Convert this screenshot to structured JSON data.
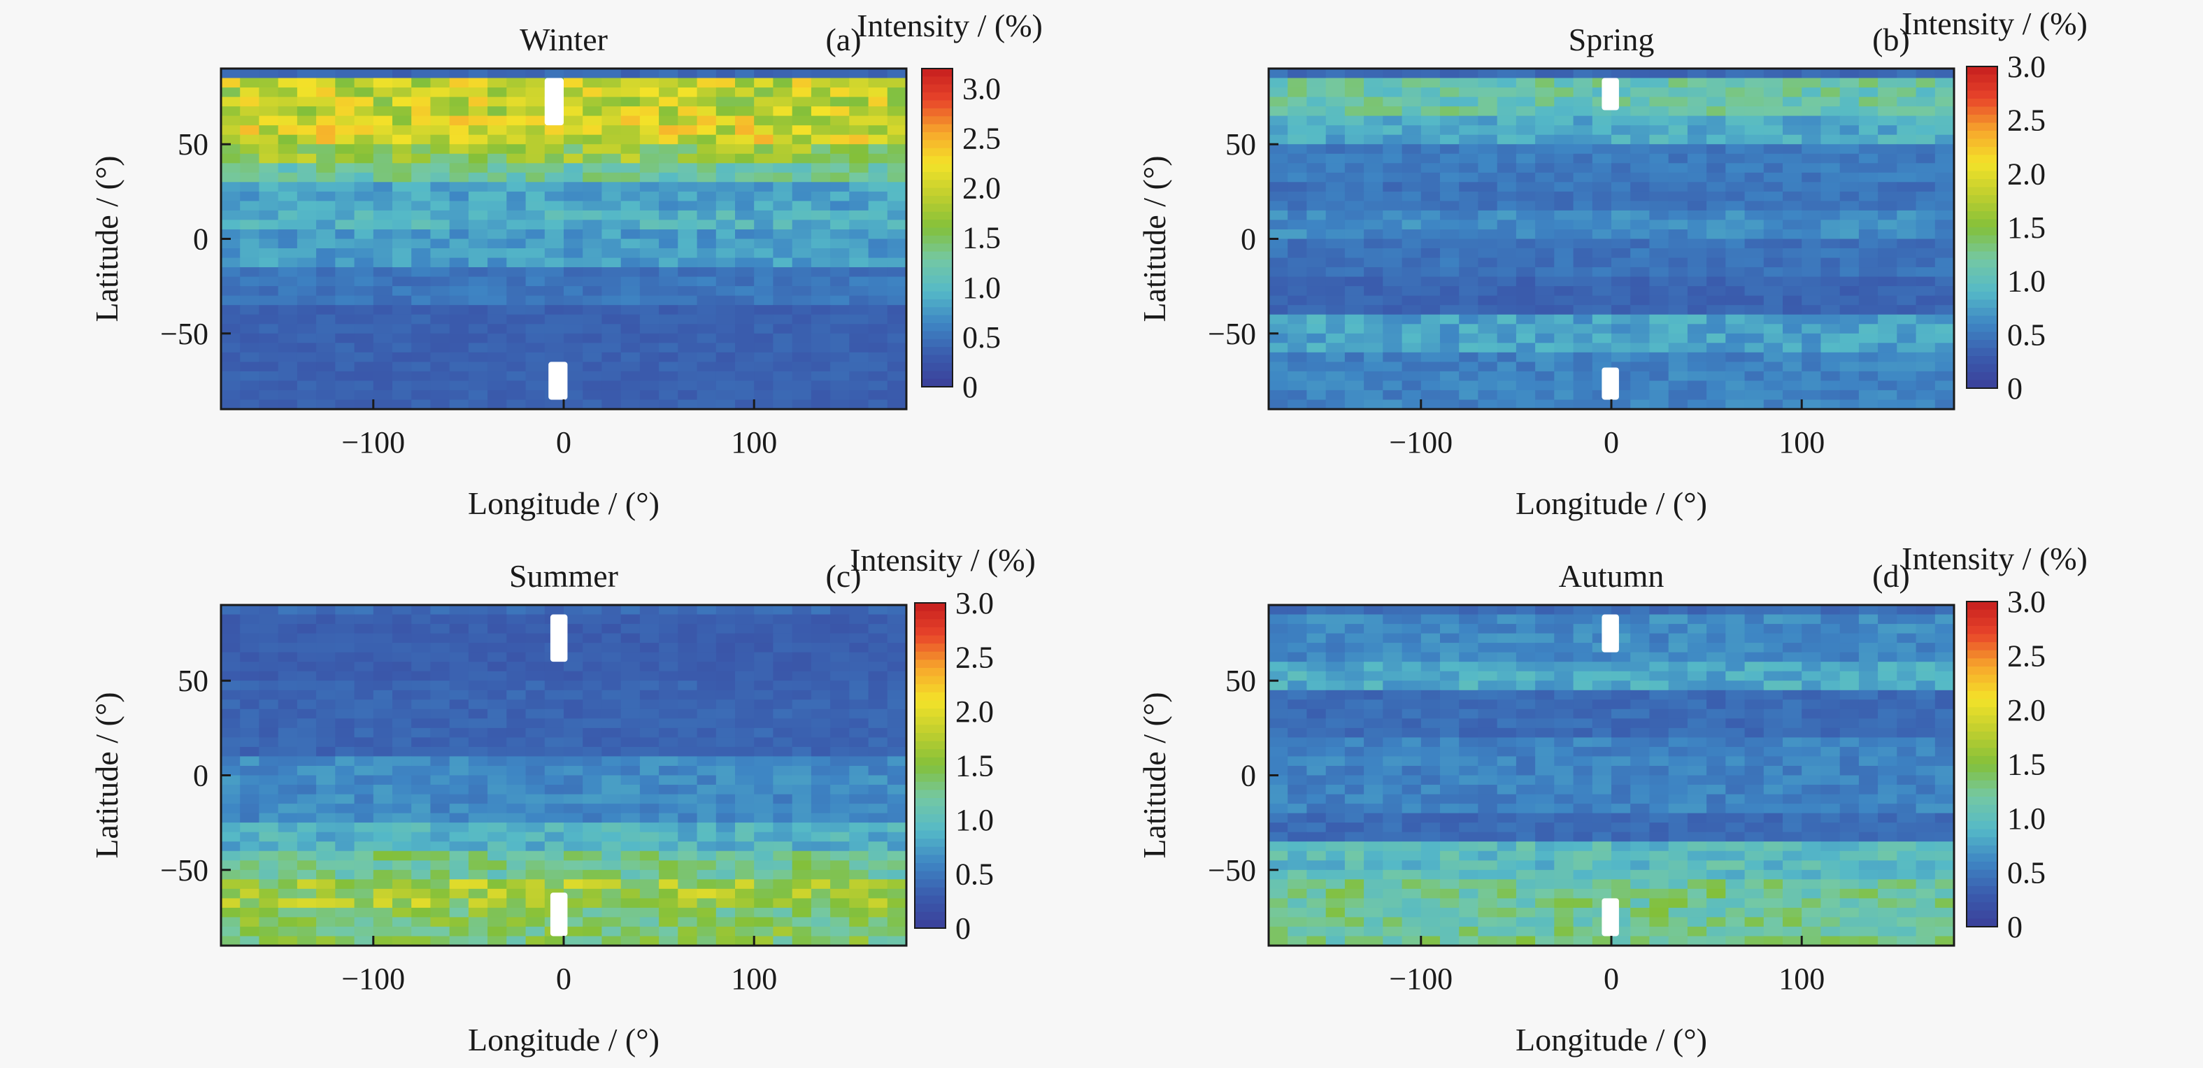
{
  "chart_data": [
    {
      "type": "heatmap",
      "panel_label": "(a)",
      "title": "Winter",
      "xlabel": "Longitude / (°)",
      "ylabel": "Latitude / (°)",
      "xlim": [
        -180,
        180
      ],
      "ylim": [
        -90,
        90
      ],
      "xticks": [
        -100,
        0,
        100
      ],
      "yticks": [
        50,
        0,
        -50
      ],
      "colorbar": {
        "title": "Intensity / (%)",
        "range": [
          0,
          3.2
        ],
        "ticks": [
          "3.0",
          "2.5",
          "2.0",
          "1.5",
          "1.0",
          "0.5",
          "0"
        ]
      },
      "grid_step_deg": [
        10,
        5
      ],
      "latitude_bands": [
        {
          "lat": [
            65,
            85
          ],
          "intensity": 1.9
        },
        {
          "lat": [
            50,
            65
          ],
          "intensity": 2.0
        },
        {
          "lat": [
            40,
            50
          ],
          "intensity": 1.6
        },
        {
          "lat": [
            30,
            40
          ],
          "intensity": 1.2
        },
        {
          "lat": [
            15,
            30
          ],
          "intensity": 0.8
        },
        {
          "lat": [
            5,
            15
          ],
          "intensity": 0.9
        },
        {
          "lat": [
            -15,
            5
          ],
          "intensity": 0.75
        },
        {
          "lat": [
            -35,
            -15
          ],
          "intensity": 0.5
        },
        {
          "lat": [
            -90,
            -35
          ],
          "intensity": 0.35
        }
      ],
      "gaps": [
        {
          "lon": [
            -10,
            0
          ],
          "lat": [
            60,
            85
          ]
        },
        {
          "lon": [
            -8,
            2
          ],
          "lat": [
            -85,
            -65
          ]
        }
      ]
    },
    {
      "type": "heatmap",
      "panel_label": "(b)",
      "title": "Spring",
      "xlabel": "Longitude / (°)",
      "ylabel": "Latitude / (°)",
      "xlim": [
        -180,
        180
      ],
      "ylim": [
        -90,
        90
      ],
      "xticks": [
        -100,
        0,
        100
      ],
      "yticks": [
        50,
        0,
        -50
      ],
      "colorbar": {
        "title": "Intensity / (%)",
        "range": [
          0,
          3.0
        ],
        "ticks": [
          "3.0",
          "2.5",
          "2.0",
          "1.5",
          "1.0",
          "0.5",
          "0"
        ]
      },
      "grid_step_deg": [
        10,
        5
      ],
      "latitude_bands": [
        {
          "lat": [
            65,
            85
          ],
          "intensity": 1.1
        },
        {
          "lat": [
            50,
            65
          ],
          "intensity": 0.8
        },
        {
          "lat": [
            30,
            50
          ],
          "intensity": 0.5
        },
        {
          "lat": [
            15,
            30
          ],
          "intensity": 0.45
        },
        {
          "lat": [
            0,
            15
          ],
          "intensity": 0.6
        },
        {
          "lat": [
            -20,
            0
          ],
          "intensity": 0.45
        },
        {
          "lat": [
            -40,
            -20
          ],
          "intensity": 0.35
        },
        {
          "lat": [
            -60,
            -40
          ],
          "intensity": 0.75
        },
        {
          "lat": [
            -90,
            -60
          ],
          "intensity": 0.55
        }
      ],
      "gaps": [
        {
          "lon": [
            -5,
            4
          ],
          "lat": [
            68,
            85
          ]
        },
        {
          "lon": [
            -5,
            4
          ],
          "lat": [
            -85,
            -68
          ]
        }
      ]
    },
    {
      "type": "heatmap",
      "panel_label": "(c)",
      "title": "Summer",
      "xlabel": "Longitude / (°)",
      "ylabel": "Latitude / (°)",
      "xlim": [
        -180,
        180
      ],
      "ylim": [
        -90,
        90
      ],
      "xticks": [
        -100,
        0,
        100
      ],
      "yticks": [
        50,
        0,
        -50
      ],
      "colorbar": {
        "title": "Intensity / (%)",
        "range": [
          0,
          3.0
        ],
        "ticks": [
          "3.0",
          "2.5",
          "2.0",
          "1.5",
          "1.0",
          "0.5",
          "0"
        ]
      },
      "grid_step_deg": [
        10,
        5
      ],
      "latitude_bands": [
        {
          "lat": [
            50,
            85
          ],
          "intensity": 0.3
        },
        {
          "lat": [
            10,
            50
          ],
          "intensity": 0.35
        },
        {
          "lat": [
            -25,
            10
          ],
          "intensity": 0.6
        },
        {
          "lat": [
            -40,
            -25
          ],
          "intensity": 0.85
        },
        {
          "lat": [
            -55,
            -40
          ],
          "intensity": 1.2
        },
        {
          "lat": [
            -70,
            -55
          ],
          "intensity": 1.6
        },
        {
          "lat": [
            -90,
            -70
          ],
          "intensity": 1.35
        }
      ],
      "gaps": [
        {
          "lon": [
            -7,
            2
          ],
          "lat": [
            60,
            85
          ]
        },
        {
          "lon": [
            -7,
            2
          ],
          "lat": [
            -85,
            -62
          ]
        }
      ]
    },
    {
      "type": "heatmap",
      "panel_label": "(d)",
      "title": "Autumn",
      "xlabel": "Longitude / (°)",
      "ylabel": "Latitude / (°)",
      "xlim": [
        -180,
        180
      ],
      "ylim": [
        -90,
        90
      ],
      "xticks": [
        -100,
        0,
        100
      ],
      "yticks": [
        50,
        0,
        -50
      ],
      "colorbar": {
        "title": "Intensity / (%)",
        "range": [
          0,
          3.0
        ],
        "ticks": [
          "3.0",
          "2.5",
          "2.0",
          "1.5",
          "1.0",
          "0.5",
          "0"
        ]
      },
      "grid_step_deg": [
        10,
        5
      ],
      "latitude_bands": [
        {
          "lat": [
            60,
            85
          ],
          "intensity": 0.6
        },
        {
          "lat": [
            45,
            60
          ],
          "intensity": 0.8
        },
        {
          "lat": [
            20,
            45
          ],
          "intensity": 0.4
        },
        {
          "lat": [
            -20,
            20
          ],
          "intensity": 0.55
        },
        {
          "lat": [
            -35,
            -20
          ],
          "intensity": 0.4
        },
        {
          "lat": [
            -55,
            -35
          ],
          "intensity": 0.95
        },
        {
          "lat": [
            -90,
            -55
          ],
          "intensity": 1.2
        }
      ],
      "gaps": [
        {
          "lon": [
            -5,
            4
          ],
          "lat": [
            65,
            85
          ]
        },
        {
          "lon": [
            -5,
            4
          ],
          "lat": [
            -85,
            -65
          ]
        }
      ]
    }
  ],
  "colors": {
    "colormap": [
      "#3b3f99",
      "#3a5cad",
      "#3e86c4",
      "#55b9c7",
      "#74c8a4",
      "#83c03a",
      "#bfcf2f",
      "#f3e229",
      "#f7a72c",
      "#e8452a",
      "#c61e1f"
    ],
    "gap": "#ffffff",
    "axis": "#1a1a1a"
  }
}
